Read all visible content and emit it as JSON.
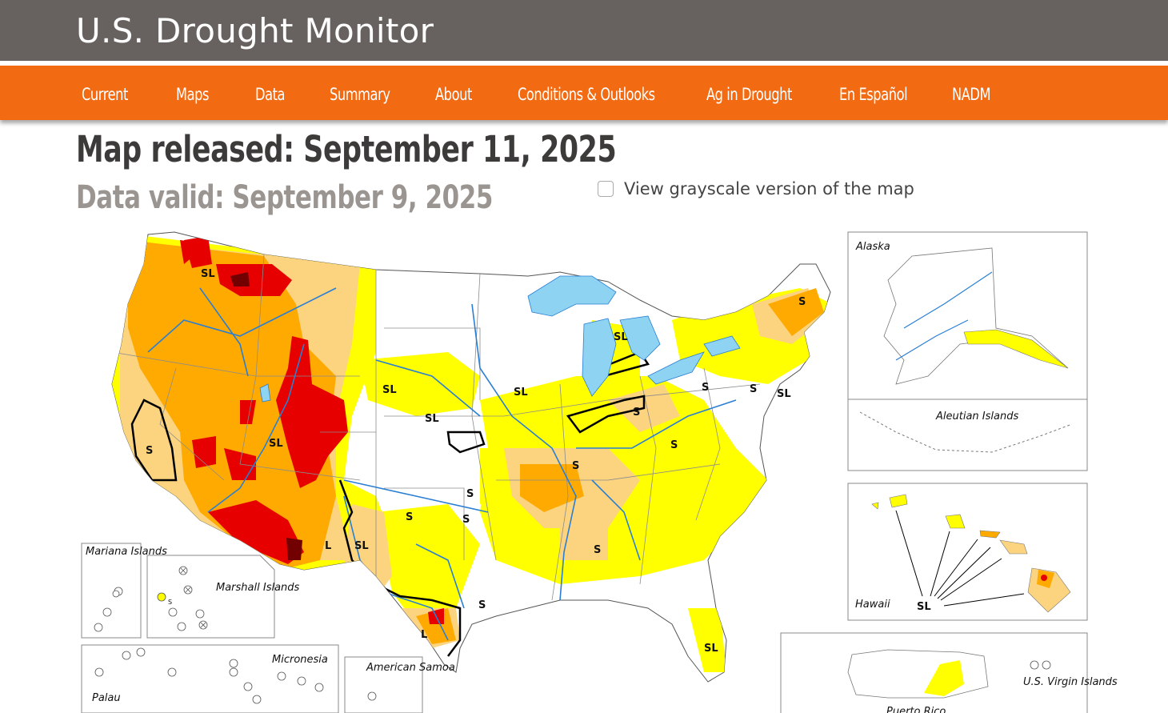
{
  "header": {
    "site_title": "U.S. Drought Monitor"
  },
  "nav": {
    "items": [
      "Current",
      "Maps",
      "Data",
      "Summary",
      "About",
      "Conditions & Outlooks",
      "Ag in Drought",
      "En Español",
      "NADM"
    ]
  },
  "release": {
    "released": "Map released: September 11, 2025",
    "valid": "Data valid: September 9, 2025"
  },
  "grayscale": {
    "label": "View grayscale version of the map",
    "checked": false
  },
  "map": {
    "insets": {
      "alaska": "Alaska",
      "aleutian": "Aleutian Islands",
      "hawaii": "Hawaii",
      "mariana": "Mariana Islands",
      "marshall": "Marshall Islands",
      "micronesia": "Micronesia",
      "palau": "Palau",
      "american_samoa": "American Samoa",
      "puerto_rico": "Puerto Rico",
      "usvi": "U.S. Virgin Islands"
    },
    "impact_codes": {
      "nw_sl": "SL",
      "ne_sl": "SL",
      "nd_sl": "SL",
      "ks_sl": "SL",
      "ut_sl": "SL",
      "ca_s": "S",
      "ia_sl": "SL",
      "mi_sl": "SL",
      "oh_s": "S",
      "pa_s": "S",
      "nj_s": "S",
      "nj_sl": "SL",
      "me_s": "S",
      "ky_s": "S",
      "mo_s": "S",
      "ok_s1": "S",
      "ok_s2": "S",
      "ok_s3": "S",
      "nm_l": "L",
      "nm_sl": "SL",
      "tx_l": "L",
      "tx_s": "S",
      "ms_s": "S",
      "fl_sl": "SL",
      "hi_sl": "SL",
      "marshall_s": "S"
    },
    "colors": {
      "D0": "#ffff00",
      "D1": "#fcd37f",
      "D2": "#ffaa00",
      "D3": "#e60000",
      "D4": "#730000",
      "water": "#8fd3f2",
      "rivers": "#2a7fd4",
      "borders": "#8c8c8c"
    }
  }
}
